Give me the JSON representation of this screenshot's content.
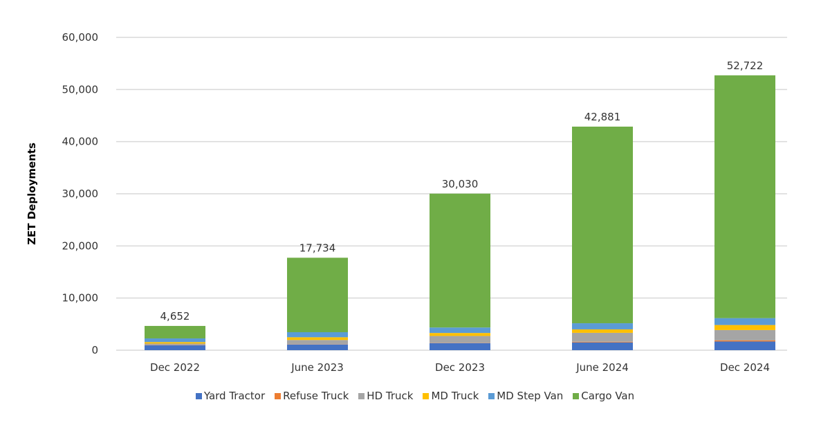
{
  "chart_data": {
    "type": "bar",
    "stacked": true,
    "title": "",
    "xlabel": "",
    "ylabel": "ZET Deployments",
    "ylim": [
      0,
      60000
    ],
    "yticks": [
      "0",
      "10,000",
      "20,000",
      "30,000",
      "40,000",
      "50,000",
      "60,000"
    ],
    "ytick_values": [
      0,
      10000,
      20000,
      30000,
      40000,
      50000,
      60000
    ],
    "grid": true,
    "legend_position": "bottom",
    "categories": [
      "Dec 2022",
      "June 2023",
      "Dec 2023",
      "June 2024",
      "Dec 2024"
    ],
    "totals": [
      4652,
      17734,
      30030,
      42881,
      52722
    ],
    "total_labels": [
      "4,652",
      "17,734",
      "30,030",
      "42,881",
      "52,722"
    ],
    "series": [
      {
        "name": "Yard Tractor",
        "color": "#4472C4",
        "values": [
          960,
          1100,
          1360,
          1490,
          1670
        ]
      },
      {
        "name": "Refuse Truck",
        "color": "#ED7D31",
        "values": [
          50,
          50,
          50,
          130,
          220
        ]
      },
      {
        "name": "HD Truck",
        "color": "#A5A5A5",
        "values": [
          250,
          800,
          1320,
          1710,
          1970
        ]
      },
      {
        "name": "MD Truck",
        "color": "#FFC000",
        "values": [
          300,
          530,
          570,
          660,
          970
        ]
      },
      {
        "name": "MD Step Van",
        "color": "#5B9BD5",
        "values": [
          700,
          970,
          1050,
          1180,
          1320
        ]
      },
      {
        "name": "Cargo Van",
        "color": "#70AD47",
        "values": [
          2392,
          14284,
          25680,
          37711,
          46572
        ]
      }
    ]
  }
}
